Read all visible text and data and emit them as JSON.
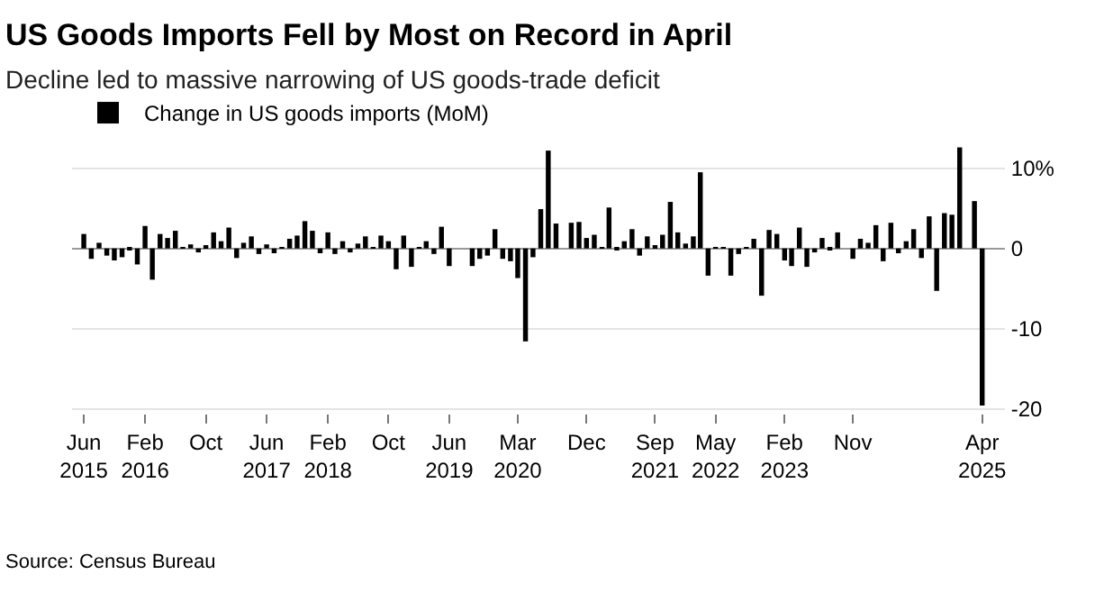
{
  "chart_data": {
    "type": "bar",
    "title": "US Goods Imports Fell by Most on Record in April",
    "subtitle": "Decline led to massive narrowing of US goods-trade deficit",
    "annotations": [
      "Source: Census Bureau"
    ],
    "x": [
      "2015-06",
      "2015-07",
      "2015-08",
      "2015-09",
      "2015-10",
      "2015-11",
      "2015-12",
      "2016-01",
      "2016-02",
      "2016-03",
      "2016-04",
      "2016-05",
      "2016-06",
      "2016-07",
      "2016-08",
      "2016-09",
      "2016-10",
      "2016-11",
      "2016-12",
      "2017-01",
      "2017-02",
      "2017-03",
      "2017-04",
      "2017-05",
      "2017-06",
      "2017-07",
      "2017-08",
      "2017-09",
      "2017-10",
      "2017-11",
      "2017-12",
      "2018-01",
      "2018-02",
      "2018-03",
      "2018-04",
      "2018-05",
      "2018-06",
      "2018-07",
      "2018-08",
      "2018-09",
      "2018-10",
      "2018-11",
      "2018-12",
      "2019-01",
      "2019-02",
      "2019-03",
      "2019-04",
      "2019-05",
      "2019-06",
      "2019-07",
      "2019-08",
      "2019-09",
      "2019-10",
      "2019-11",
      "2019-12",
      "2020-01",
      "2020-02",
      "2020-03",
      "2020-04",
      "2020-05",
      "2020-06",
      "2020-07",
      "2020-08",
      "2020-09",
      "2020-10",
      "2020-11",
      "2020-12",
      "2021-01",
      "2021-02",
      "2021-03",
      "2021-04",
      "2021-05",
      "2021-06",
      "2021-07",
      "2021-08",
      "2021-09",
      "2021-10",
      "2021-11",
      "2021-12",
      "2022-01",
      "2022-02",
      "2022-03",
      "2022-04",
      "2022-05",
      "2022-06",
      "2022-07",
      "2022-08",
      "2022-09",
      "2022-10",
      "2022-11",
      "2022-12",
      "2023-01",
      "2023-02",
      "2023-03",
      "2023-04",
      "2023-05",
      "2023-06",
      "2023-07",
      "2023-08",
      "2023-09",
      "2023-10",
      "2023-11",
      "2023-12",
      "2024-01",
      "2024-02",
      "2024-03",
      "2024-04",
      "2024-05",
      "2024-06",
      "2024-07",
      "2024-08",
      "2024-09",
      "2024-10",
      "2024-11",
      "2024-12",
      "2025-01",
      "2025-02",
      "2025-03",
      "2025-04"
    ],
    "series": [
      {
        "name": "Change in US goods imports (MoM)",
        "color": "#000000",
        "values": [
          1.8,
          -1.3,
          0.7,
          -0.9,
          -1.5,
          -1.1,
          -0.2,
          -2.0,
          2.8,
          -3.9,
          1.8,
          1.3,
          2.2,
          0.1,
          0.5,
          -0.5,
          0.4,
          2.0,
          0.9,
          2.6,
          -1.2,
          0.7,
          1.5,
          -0.7,
          0.5,
          -0.6,
          0.1,
          1.2,
          1.6,
          3.4,
          2.2,
          -0.6,
          2.0,
          -0.7,
          0.9,
          -0.5,
          0.6,
          1.5,
          0.1,
          1.6,
          0.9,
          -2.6,
          1.6,
          -2.3,
          0.1,
          0.9,
          -0.7,
          2.7,
          -2.2,
          0.0,
          0.0,
          -2.2,
          -1.3,
          -0.9,
          2.4,
          -1.3,
          -1.6,
          -3.7,
          -11.6,
          -1.1,
          4.9,
          12.2,
          3.1,
          0.0,
          3.2,
          3.3,
          1.3,
          1.7,
          0.1,
          5.1,
          -0.2,
          0.9,
          2.4,
          -0.9,
          1.5,
          0.4,
          1.7,
          5.8,
          2.0,
          0.6,
          1.5,
          9.5,
          -3.4,
          0.1,
          0.1,
          -3.4,
          -0.7,
          0.1,
          1.2,
          -5.9,
          2.3,
          1.8,
          -1.5,
          -2.2,
          2.6,
          -2.3,
          -0.5,
          1.3,
          -0.2,
          2.0,
          0.0,
          -1.3,
          1.2,
          0.7,
          2.9,
          -1.6,
          3.2,
          -0.6,
          0.9,
          2.4,
          -1.2,
          4.0,
          -5.3,
          4.4,
          4.2,
          12.6,
          0.0,
          5.9,
          -19.6
        ]
      }
    ],
    "xlim": [
      "2015-04-15",
      "2025-07-01"
    ],
    "xticks": [
      {
        "value": "2015-06",
        "label": "Jun\n2015"
      },
      {
        "value": "2016-02",
        "label": "Feb\n2016"
      },
      {
        "value": "2016-10",
        "label": "Oct"
      },
      {
        "value": "2017-06",
        "label": "Jun\n2017"
      },
      {
        "value": "2018-02",
        "label": "Feb\n2018"
      },
      {
        "value": "2018-10",
        "label": "Oct"
      },
      {
        "value": "2019-06",
        "label": "Jun\n2019"
      },
      {
        "value": "2020-03",
        "label": "Mar\n2020"
      },
      {
        "value": "2020-12",
        "label": "Dec"
      },
      {
        "value": "2021-09",
        "label": "Sep\n2021"
      },
      {
        "value": "2022-05",
        "label": "May\n2022"
      },
      {
        "value": "2023-02",
        "label": "Feb\n2023"
      },
      {
        "value": "2023-11",
        "label": "Nov"
      },
      {
        "value": "2025-04",
        "label": "Apr\n2025"
      }
    ],
    "ylim": [
      -20.5,
      13
    ],
    "yticks": [
      {
        "value": 10,
        "label": "10%"
      },
      0,
      -10,
      -20
    ],
    "grid": "y",
    "legend": "top left"
  }
}
